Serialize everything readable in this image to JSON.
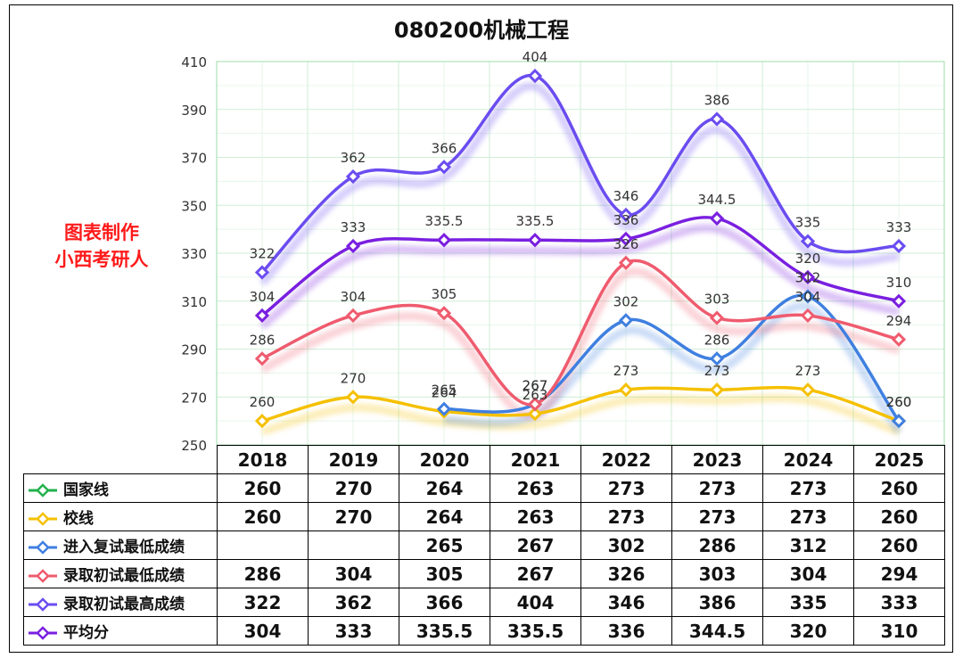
{
  "watermark": [
    "图表制作",
    "小西考研人"
  ],
  "colors": {
    "国家线": "#22b14c",
    "校线": "#f5c000",
    "进入复试最低成绩": "#3f7fe0",
    "录取初试最低成绩": "#ef5b6e",
    "录取初试最高成绩": "#6b4cf0",
    "平均分": "#7a1fe0"
  },
  "chart_data": {
    "type": "line",
    "title": "080200机械工程",
    "categories": [
      "2018",
      "2019",
      "2020",
      "2021",
      "2022",
      "2023",
      "2024",
      "2025"
    ],
    "ylim": [
      250,
      410
    ],
    "yticks": [
      250,
      270,
      290,
      310,
      330,
      350,
      370,
      390,
      410
    ],
    "grid": true,
    "legend": "data-table",
    "series": [
      {
        "name": "国家线",
        "values": [
          260,
          270,
          264,
          263,
          273,
          273,
          273,
          260
        ],
        "show_line": false
      },
      {
        "name": "校线",
        "values": [
          260,
          270,
          264,
          263,
          273,
          273,
          273,
          260
        ]
      },
      {
        "name": "进入复试最低成绩",
        "values": [
          null,
          null,
          265,
          267,
          302,
          286,
          312,
          260
        ]
      },
      {
        "name": "录取初试最低成绩",
        "values": [
          286,
          304,
          305,
          267,
          326,
          303,
          304,
          294
        ]
      },
      {
        "name": "录取初试最高成绩",
        "values": [
          322,
          362,
          366,
          404,
          346,
          386,
          335,
          333
        ]
      },
      {
        "name": "平均分",
        "values": [
          304,
          333,
          335.5,
          335.5,
          336,
          344.5,
          320,
          310
        ]
      }
    ]
  }
}
